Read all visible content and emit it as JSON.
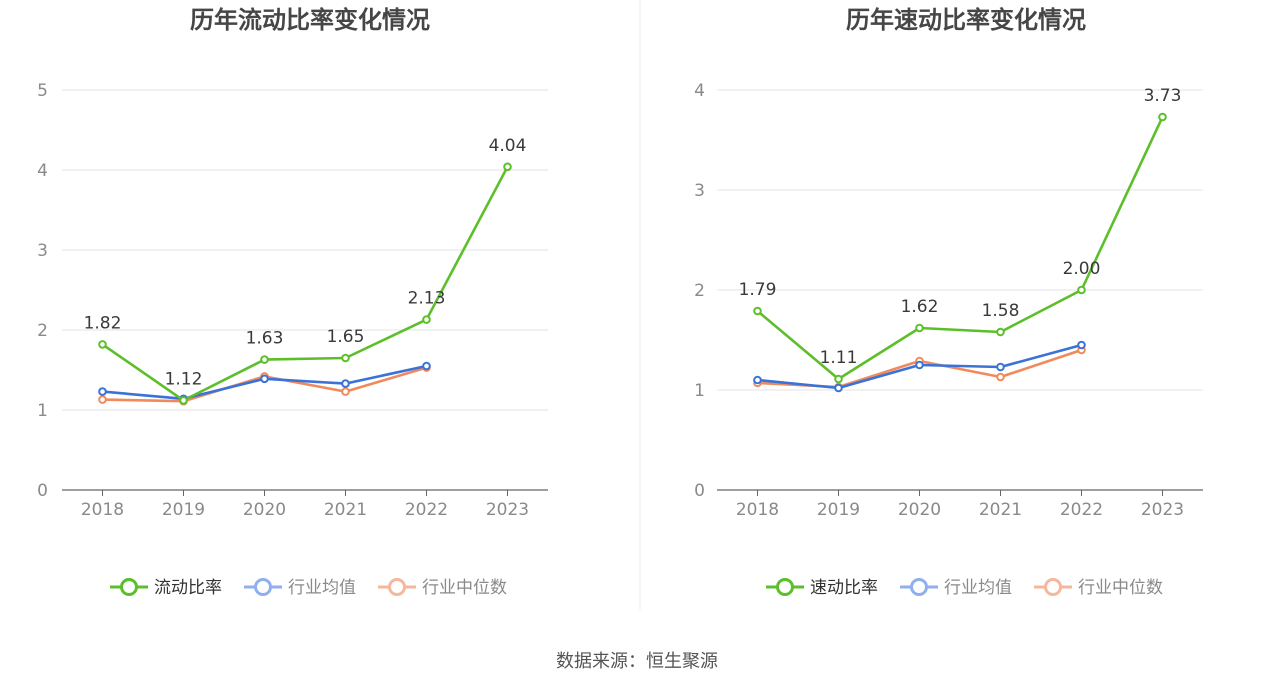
{
  "colors": {
    "main": "#5cbf2a",
    "avg": "#3a72d8",
    "median": "#f08a5d",
    "legend_avg": "#8fb0ee",
    "legend_median": "#f5b79d",
    "grid": "#e3e3e3",
    "axis": "#666666"
  },
  "source_text": "数据来源：恒生聚源",
  "chart_data": [
    {
      "type": "line",
      "title": "历年流动比率变化情况",
      "categories": [
        "2018",
        "2019",
        "2020",
        "2021",
        "2022",
        "2023"
      ],
      "ylim": [
        0,
        5
      ],
      "yticks": [
        "0",
        "1",
        "2",
        "3",
        "4",
        "5"
      ],
      "series": [
        {
          "name": "流动比率",
          "values": [
            1.82,
            1.12,
            1.63,
            1.65,
            2.13,
            4.04
          ],
          "labels": [
            "1.82",
            "1.12",
            "1.63",
            "1.65",
            "2.13",
            "4.04"
          ],
          "color_key": "main",
          "legend_color_key": "main"
        },
        {
          "name": "行业均值",
          "values": [
            1.23,
            1.14,
            1.39,
            1.33,
            1.55,
            null
          ],
          "color_key": "avg",
          "legend_color_key": "legend_avg"
        },
        {
          "name": "行业中位数",
          "values": [
            1.13,
            1.11,
            1.42,
            1.23,
            1.53,
            null
          ],
          "color_key": "median",
          "legend_color_key": "legend_median"
        }
      ],
      "grid": true,
      "legend": "bottom"
    },
    {
      "type": "line",
      "title": "历年速动比率变化情况",
      "categories": [
        "2018",
        "2019",
        "2020",
        "2021",
        "2022",
        "2023"
      ],
      "ylim": [
        0,
        4
      ],
      "yticks": [
        "0",
        "1",
        "2",
        "3",
        "4"
      ],
      "series": [
        {
          "name": "速动比率",
          "values": [
            1.79,
            1.11,
            1.62,
            1.58,
            2.0,
            3.73
          ],
          "labels": [
            "1.79",
            "1.11",
            "1.62",
            "1.58",
            "2.00",
            "3.73"
          ],
          "color_key": "main",
          "legend_color_key": "main"
        },
        {
          "name": "行业均值",
          "values": [
            1.1,
            1.02,
            1.25,
            1.23,
            1.45,
            null
          ],
          "color_key": "avg",
          "legend_color_key": "legend_avg"
        },
        {
          "name": "行业中位数",
          "values": [
            1.07,
            1.03,
            1.29,
            1.13,
            1.4,
            null
          ],
          "color_key": "median",
          "legend_color_key": "legend_median"
        }
      ],
      "grid": true,
      "legend": "bottom"
    }
  ]
}
